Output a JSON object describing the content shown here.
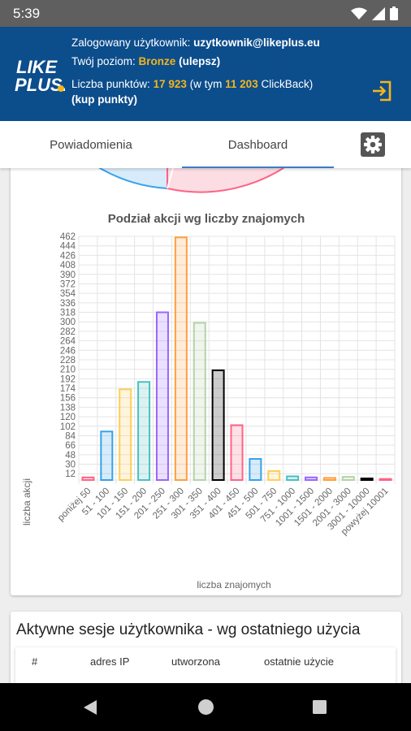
{
  "status_bar": {
    "time": "5:39"
  },
  "header": {
    "logo_text_top": "LIKE",
    "logo_text_bottom": "PLUS.",
    "user_label": "Zalogowany użytkownik:",
    "user_email": "uzytkownik@likeplus.eu",
    "level_label": "Twój poziom:",
    "level_value": "Bronze",
    "level_upgrade": "(ulepsz)",
    "points_label": "Liczba punktów:",
    "points_value": "17 923",
    "points_middle": "(w tym",
    "clickback_value": "11 203",
    "clickback_label": "ClickBack)",
    "buy_points": "(kup punkty)"
  },
  "tabs": {
    "notifications": "Powiadomienia",
    "dashboard": "Dashboard",
    "active": "dashboard"
  },
  "chart_data": {
    "type": "bar",
    "title": "Podział akcji wg liczby znajomych",
    "xlabel": "liczba znajomych",
    "ylabel": "liczba akcji",
    "ylim": [
      0,
      462
    ],
    "y_ticks": [
      "12",
      "30",
      "48",
      "66",
      "84",
      "102",
      "120",
      "138",
      "156",
      "174",
      "192",
      "210",
      "228",
      "246",
      "264",
      "282",
      "300",
      "318",
      "336",
      "354",
      "372",
      "390",
      "408",
      "426",
      "444",
      "462"
    ],
    "categories": [
      "poniżej 50",
      "51 - 100",
      "101 - 150",
      "151 - 200",
      "201 - 250",
      "251 - 300",
      "301 - 350",
      "351 - 400",
      "401 - 450",
      "451 - 500",
      "501 - 750",
      "751 - 1000",
      "1001 - 1500",
      "1501 - 2000",
      "2001 - 3000",
      "3001 - 10000",
      "powyżej 10001"
    ],
    "values": [
      5,
      92,
      172,
      186,
      318,
      460,
      298,
      208,
      104,
      40,
      17,
      7,
      5,
      4,
      6,
      3,
      2
    ],
    "border_colors": [
      "#ff6384",
      "#36a2eb",
      "#ffce56",
      "#4bc0c0",
      "#9966ff",
      "#ff9f40",
      "#b5d3a8",
      "#000000",
      "#ff6384",
      "#36a2eb",
      "#ffce56",
      "#4bc0c0",
      "#9966ff",
      "#ff9f40",
      "#b5d3a8",
      "#000000",
      "#ff6384"
    ],
    "grid": true,
    "legend": "none"
  },
  "pie_partial": {
    "colors": [
      "#36a2eb",
      "#ff6384"
    ]
  },
  "sessions": {
    "title": "Aktywne sesje użytkownika - wg ostatniego użycia",
    "columns": [
      "#",
      "adres IP",
      "utworzona",
      "ostatnie użycie"
    ]
  }
}
